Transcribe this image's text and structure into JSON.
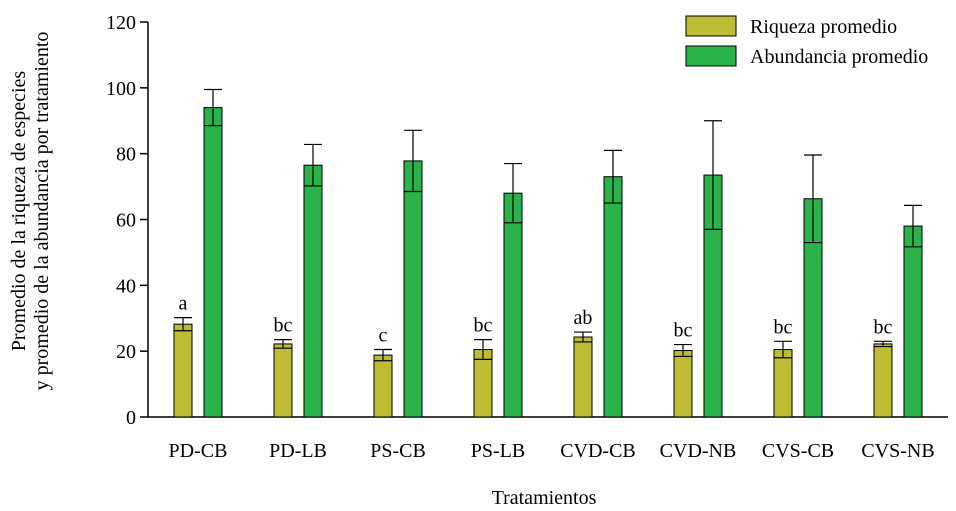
{
  "chart_data": {
    "type": "bar",
    "title": "",
    "xlabel": "Tratamientos",
    "ylabel": [
      "Promedio de la riqueza de especies",
      "y promedio de la abundancia por tratamiento"
    ],
    "ylim": [
      0,
      120
    ],
    "yticks": [
      0,
      20,
      40,
      60,
      80,
      100,
      120
    ],
    "grid": false,
    "legend_position": "top-right",
    "categories": [
      "PD-CB",
      "PD-LB",
      "PS-CB",
      "PS-LB",
      "CVD-CB",
      "CVD-NB",
      "CVS-CB",
      "CVS-NB"
    ],
    "series": [
      {
        "name": "Riqueza promedio",
        "color": "#bcbd32",
        "values": [
          28.2,
          22.2,
          18.8,
          20.5,
          24.3,
          20.2,
          20.5,
          22.2
        ],
        "error": [
          2.0,
          1.3,
          1.7,
          3.0,
          1.5,
          1.8,
          2.5,
          0.8
        ],
        "labels": [
          "a",
          "bc",
          "c",
          "bc",
          "ab",
          "bc",
          "bc",
          "bc"
        ]
      },
      {
        "name": "Abundancia promedio",
        "color": "#2bb24a",
        "values": [
          94.0,
          76.5,
          77.8,
          68.0,
          73.0,
          73.5,
          66.3,
          58.0
        ],
        "error": [
          5.5,
          6.3,
          9.3,
          9.0,
          8.0,
          16.5,
          13.3,
          6.3
        ]
      }
    ]
  }
}
